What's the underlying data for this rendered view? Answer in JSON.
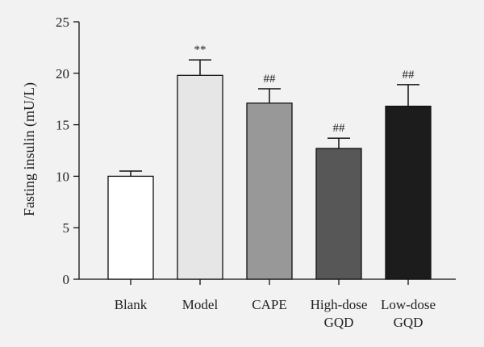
{
  "chart_data": {
    "type": "bar",
    "title": "",
    "xlabel": "",
    "ylabel": "Fasting insulin (mU/L)",
    "ylim": [
      0,
      25
    ],
    "yticks": [
      0,
      5,
      10,
      15,
      20,
      25
    ],
    "grid": false,
    "categories": [
      [
        "Blank"
      ],
      [
        "Model"
      ],
      [
        "CAPE"
      ],
      [
        "High-dose",
        "GQD"
      ],
      [
        "Low-dose",
        "GQD"
      ]
    ],
    "values": [
      10.0,
      19.8,
      17.1,
      12.7,
      16.8
    ],
    "errors": [
      0.5,
      1.5,
      1.4,
      1.0,
      2.1
    ],
    "annotations": [
      "",
      "**",
      "##",
      "##",
      "##"
    ],
    "colors": [
      "#ffffff",
      "#e6e6e6",
      "#989898",
      "#575757",
      "#1c1c1c"
    ]
  }
}
